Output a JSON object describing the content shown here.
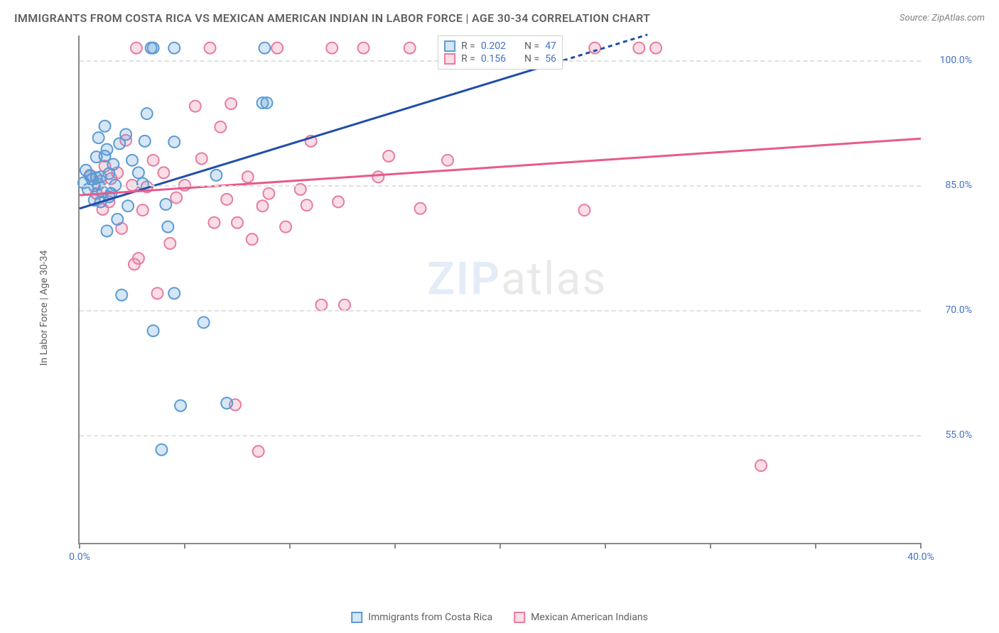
{
  "header": {
    "title": "IMMIGRANTS FROM COSTA RICA VS MEXICAN AMERICAN INDIAN IN LABOR FORCE | AGE 30-34 CORRELATION CHART",
    "source": "Source: ZipAtlas.com"
  },
  "chart": {
    "type": "scatter",
    "y_axis_title": "In Labor Force | Age 30-34",
    "xlim": [
      0.0,
      40.0
    ],
    "ylim": [
      42.0,
      103.0
    ],
    "x_ticks": [
      0.0,
      5.0,
      10.0,
      15.0,
      20.0,
      25.0,
      30.0,
      35.0,
      40.0
    ],
    "x_tick_labels": {
      "0": "0.0%",
      "40": "40.0%"
    },
    "y_grid": [
      55.0,
      70.0,
      85.0,
      100.0
    ],
    "y_tick_labels": {
      "55": "55.0%",
      "70": "70.0%",
      "85": "85.0%",
      "100": "100.0%"
    },
    "grid_color": "#e0e0e0",
    "background_color": "#ffffff",
    "marker_radius": 8,
    "marker_stroke_width": 2,
    "marker_fill_opacity": 0.25,
    "series_a": {
      "label": "Immigrants from Costa Rica",
      "color": "#5b9bd5",
      "line_color": "#1f4ea8",
      "r_value": "0.202",
      "n_value": "47",
      "trend": {
        "x1": 0.0,
        "y1": 82.2,
        "x2": 23.0,
        "y2": 100.0,
        "dash_x2": 27.0,
        "dash_y2": 103.1
      },
      "points": [
        [
          0.2,
          85.3
        ],
        [
          0.3,
          86.8
        ],
        [
          0.4,
          84.5
        ],
        [
          0.5,
          86.1
        ],
        [
          0.6,
          85.7
        ],
        [
          0.7,
          84.9
        ],
        [
          0.7,
          83.2
        ],
        [
          0.8,
          85.9
        ],
        [
          0.8,
          88.4
        ],
        [
          0.9,
          85.1
        ],
        [
          0.9,
          90.7
        ],
        [
          1.0,
          83.0
        ],
        [
          1.0,
          86.0
        ],
        [
          1.1,
          84.2
        ],
        [
          1.2,
          88.5
        ],
        [
          1.2,
          92.1
        ],
        [
          1.3,
          89.3
        ],
        [
          1.3,
          79.5
        ],
        [
          1.4,
          86.4
        ],
        [
          1.4,
          83.6
        ],
        [
          1.5,
          84.0
        ],
        [
          1.6,
          87.5
        ],
        [
          1.7,
          85.0
        ],
        [
          1.8,
          80.9
        ],
        [
          1.9,
          90.0
        ],
        [
          2.0,
          71.8
        ],
        [
          2.2,
          91.1
        ],
        [
          2.3,
          82.5
        ],
        [
          2.5,
          88.0
        ],
        [
          2.8,
          86.5
        ],
        [
          3.0,
          85.2
        ],
        [
          3.4,
          101.5
        ],
        [
          3.5,
          101.5
        ],
        [
          3.2,
          93.6
        ],
        [
          3.5,
          67.5
        ],
        [
          3.9,
          53.2
        ],
        [
          3.1,
          90.3
        ],
        [
          4.1,
          82.7
        ],
        [
          4.5,
          72.0
        ],
        [
          4.5,
          101.5
        ],
        [
          4.5,
          90.2
        ],
        [
          4.8,
          58.5
        ],
        [
          4.2,
          80.0
        ],
        [
          5.9,
          68.5
        ],
        [
          6.5,
          86.2
        ],
        [
          7.0,
          58.8
        ],
        [
          8.7,
          94.9
        ],
        [
          8.9,
          94.9
        ],
        [
          8.8,
          101.5
        ]
      ]
    },
    "series_b": {
      "label": "Mexican American Indians",
      "color": "#e87ca0",
      "line_color": "#e65a8e",
      "r_value": "0.156",
      "n_value": "56",
      "trend": {
        "x1": 0.0,
        "y1": 83.8,
        "x2": 40.0,
        "y2": 90.6
      },
      "points": [
        [
          0.5,
          86.2
        ],
        [
          0.8,
          84.0
        ],
        [
          1.0,
          85.5
        ],
        [
          1.1,
          82.1
        ],
        [
          1.2,
          87.3
        ],
        [
          1.4,
          83.0
        ],
        [
          1.5,
          85.8
        ],
        [
          1.8,
          86.5
        ],
        [
          2.0,
          79.8
        ],
        [
          2.2,
          90.4
        ],
        [
          2.5,
          85.0
        ],
        [
          2.6,
          75.5
        ],
        [
          2.7,
          101.5
        ],
        [
          2.8,
          76.2
        ],
        [
          3.0,
          82.0
        ],
        [
          3.2,
          84.8
        ],
        [
          3.5,
          88.0
        ],
        [
          3.7,
          72.0
        ],
        [
          4.0,
          86.5
        ],
        [
          4.3,
          78.0
        ],
        [
          4.6,
          83.5
        ],
        [
          5.0,
          85.0
        ],
        [
          5.5,
          94.5
        ],
        [
          5.8,
          88.2
        ],
        [
          6.2,
          101.5
        ],
        [
          6.4,
          80.5
        ],
        [
          6.7,
          92.0
        ],
        [
          7.0,
          83.3
        ],
        [
          7.2,
          94.8
        ],
        [
          7.4,
          58.6
        ],
        [
          7.5,
          80.5
        ],
        [
          8.0,
          86.0
        ],
        [
          8.2,
          78.5
        ],
        [
          8.5,
          53.0
        ],
        [
          8.7,
          82.5
        ],
        [
          9.0,
          84.0
        ],
        [
          9.4,
          101.5
        ],
        [
          9.8,
          80.0
        ],
        [
          10.5,
          84.5
        ],
        [
          10.8,
          82.6
        ],
        [
          11.0,
          90.3
        ],
        [
          11.5,
          70.6
        ],
        [
          12.0,
          101.5
        ],
        [
          12.3,
          83.0
        ],
        [
          12.6,
          70.6
        ],
        [
          13.5,
          101.5
        ],
        [
          14.2,
          86.0
        ],
        [
          14.7,
          88.5
        ],
        [
          15.7,
          101.5
        ],
        [
          16.2,
          82.2
        ],
        [
          17.5,
          88.0
        ],
        [
          24.0,
          82.0
        ],
        [
          24.5,
          101.5
        ],
        [
          26.6,
          101.5
        ],
        [
          27.4,
          101.5
        ],
        [
          32.4,
          51.3
        ]
      ]
    }
  },
  "legend_top": {
    "r_label": "R =",
    "n_label": "N ="
  },
  "watermark": {
    "part1": "ZIP",
    "part2": "atlas"
  }
}
